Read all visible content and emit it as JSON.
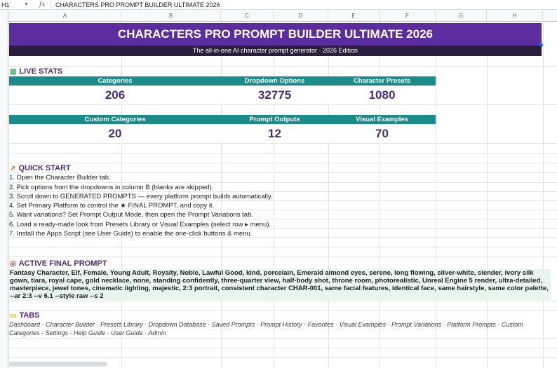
{
  "formula_bar": {
    "cell_ref": "H1",
    "fx_label": "fx",
    "content": "CHARACTERS PRO PROMPT BUILDER ULTIMATE 2026"
  },
  "columns": [
    "A",
    "B",
    "C",
    "D",
    "E",
    "F",
    "G",
    "H"
  ],
  "banner": {
    "title": "CHARACTERS PRO PROMPT BUILDER ULTIMATE 2026",
    "subtitle": "The all-in-one AI character prompt generator · 2026 Edition",
    "title_bg": "#5b2d9e",
    "subtitle_bg": "#2b1e3d"
  },
  "live_stats": {
    "heading": "LIVE STATS",
    "icon": "bar-chart-icon",
    "header_color": "#1a8c8c",
    "value_color": "#4a2a7a",
    "stats": [
      {
        "label": "Categories",
        "value": "206"
      },
      {
        "label": "Dropdown Options",
        "value": "32775"
      },
      {
        "label": "Character Presets",
        "value": "1080"
      },
      {
        "label": "Custom Categories",
        "value": "20"
      },
      {
        "label": "Prompt Outputs",
        "value": "12"
      },
      {
        "label": "Visual Examples",
        "value": "70"
      }
    ]
  },
  "quick_start": {
    "heading": "QUICK START",
    "icon": "rocket-icon",
    "steps": [
      "1.  Open the Character Builder tab.",
      "2.  Pick options from the dropdowns in column B (blanks are skipped).",
      "3.  Scroll down to GENERATED PROMPTS — every platform prompt builds automatically.",
      "4.  Set Primary Platform to control the ★ FINAL PROMPT, and copy it.",
      "5.  Want variations? Set Prompt Output Mode, then open the Prompt Variations tab.",
      "6.  Load a ready-made look from Presets Library or Visual Examples (select row ▸ menu).",
      "7.  Install the Apps Script (see User Guide) to enable the one-click buttons & menu."
    ]
  },
  "active_prompt": {
    "heading": "ACTIVE FINAL PROMPT",
    "icon": "target-icon",
    "text": "Fantasy Character, Elf, Female, Young Adult, Royalty, Noble, Lawful Good, kind, porcelain, Emerald almond eyes, serene, long flowing, silver-white, slender, ivory silk gown, tiara, royal cape, gold necklace, none, standing confidently, three-quarter view, half-body shot, throne room, photorealistic, Unreal Engine 5 render, ultra-detailed, masterpiece, jewel tones, cinematic lighting, majestic, 2:3 portrait, consistent character CHAR-001, same facial features, identical face, same hairstyle, same color palette, --ar 2:3 --v 6.1 --style raw --s 2",
    "bg": "#e8f4ee"
  },
  "tabs": {
    "heading": "TABS",
    "icon": "folder-icon",
    "list": "Dashboard · Character Builder · Presets Library · Dropdown Database · Saved Prompts · Prompt History · Favorites · Visual Examples · Prompt Variations · Platform Prompts · Custom Categories · Settings · Help Guide · User Guide · Admin"
  }
}
